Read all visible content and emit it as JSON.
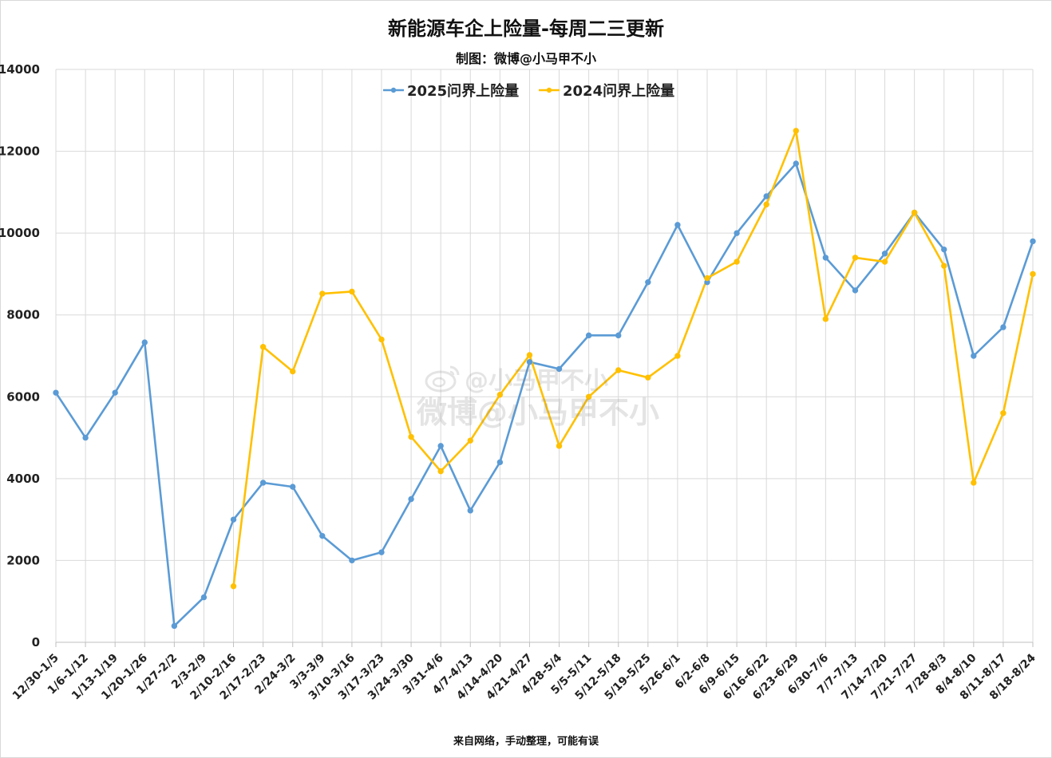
{
  "title": "新能源车企上险量-每周二三更新",
  "subtitle": "制图：微博@小马甲不小",
  "footer": "来自网络，手动整理，可能有误",
  "watermark": {
    "line1": "@小马甲不小",
    "line2": "微博@小马甲不小"
  },
  "chart_data": {
    "type": "line",
    "title": "新能源车企上险量-每周二三更新",
    "subtitle": "制图：微博@小马甲不小",
    "xlabel": "",
    "ylabel": "",
    "ylim": [
      0,
      14000
    ],
    "yticks": [
      0,
      2000,
      4000,
      6000,
      8000,
      10000,
      12000,
      14000
    ],
    "grid": true,
    "legend_position": "top-center",
    "categories": [
      "12/30-1/5",
      "1/6-1/12",
      "1/13-1/19",
      "1/20-1/26",
      "1/27-2/2",
      "2/3-2/9",
      "2/10-2/16",
      "2/17-2/23",
      "2/24-3/2",
      "3/3-3/9",
      "3/10-3/16",
      "3/17-3/23",
      "3/24-3/30",
      "3/31-4/6",
      "4/7-4/13",
      "4/14-4/20",
      "4/21-4/27",
      "4/28-5/4",
      "5/5-5/11",
      "5/12-5/18",
      "5/19-5/25",
      "5/26-6/1",
      "6/2-6/8",
      "6/9-6/15",
      "6/16-6/22",
      "6/23-6/29",
      "6/30-7/6",
      "7/7-7/13",
      "7/14-7/20",
      "7/21-7/27",
      "7/28-8/3",
      "8/4-8/10",
      "8/11-8/17",
      "8/18-8/24"
    ],
    "series": [
      {
        "name": "2025问界上险量",
        "color": "#5b9bd5",
        "values": [
          6100,
          5000,
          6100,
          7330,
          400,
          1100,
          3000,
          3900,
          3800,
          2600,
          2000,
          2200,
          3500,
          4800,
          3220,
          4400,
          6850,
          6680,
          7500,
          7500,
          8800,
          10200,
          8800,
          10000,
          10900,
          11700,
          9400,
          8600,
          9500,
          10500,
          9600,
          7000,
          7700,
          9800
        ]
      },
      {
        "name": "2024问界上险量",
        "color": "#ffc000",
        "values": [
          null,
          null,
          null,
          null,
          null,
          null,
          1370,
          7220,
          6620,
          8520,
          8570,
          7400,
          5020,
          4180,
          4930,
          6050,
          7020,
          4800,
          6000,
          6650,
          6470,
          7000,
          8900,
          9300,
          10700,
          12500,
          7900,
          9400,
          9300,
          10500,
          9200,
          3900,
          5600,
          9000
        ]
      }
    ]
  }
}
